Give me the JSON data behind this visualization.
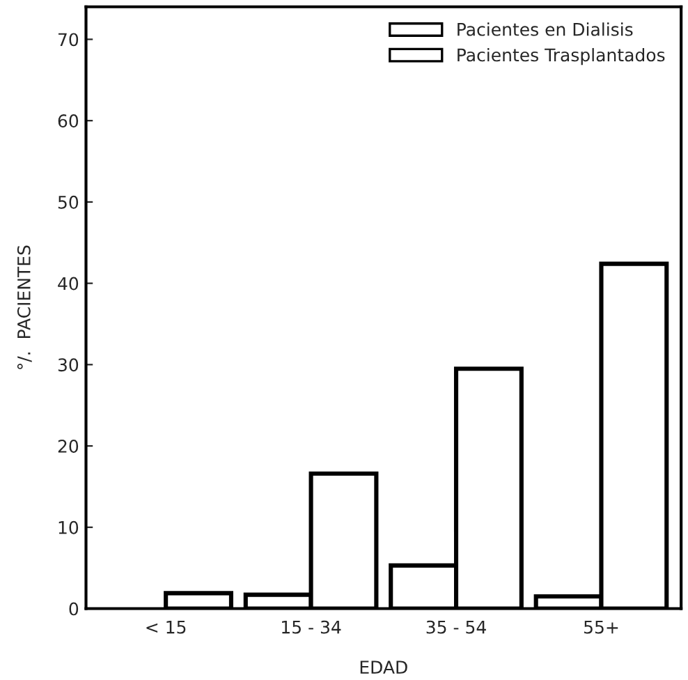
{
  "chart_data": {
    "type": "bar",
    "xlabel": "EDAD",
    "ylabel": "°/.  PACIENTES",
    "categories": [
      "< 15",
      "15 - 34",
      "35 - 54",
      "55+"
    ],
    "series": [
      {
        "name": "Pacientes en Dialisis",
        "color": "#ffffff",
        "values": [
          null,
          1.7,
          5.3,
          1.5
        ]
      },
      {
        "name": "Pacientes Trasplantados",
        "color": "#ffffff",
        "values": [
          1.9,
          16.6,
          29.5,
          42.4
        ]
      }
    ],
    "ylim": [
      0,
      74
    ],
    "yticks": [
      0,
      10,
      20,
      30,
      40,
      50,
      60,
      70
    ],
    "grid": false,
    "legend": "top right"
  }
}
